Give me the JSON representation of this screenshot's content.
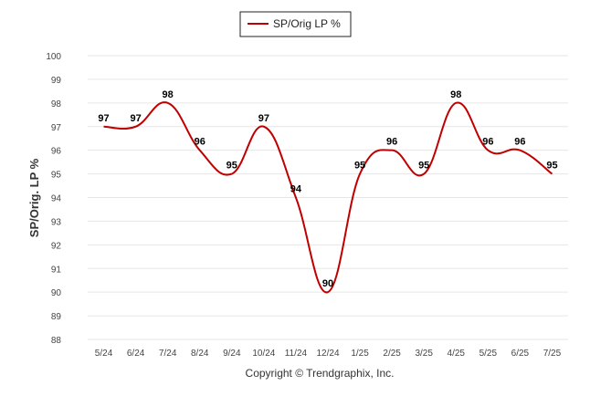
{
  "chart_data": {
    "type": "line",
    "title": "",
    "xlabel": "",
    "ylabel": "SP/Orig. LP %",
    "categories": [
      "5/24",
      "6/24",
      "7/24",
      "8/24",
      "9/24",
      "10/24",
      "11/24",
      "12/24",
      "1/25",
      "2/25",
      "3/25",
      "4/25",
      "5/25",
      "6/25",
      "7/25"
    ],
    "series": [
      {
        "name": "SP/Orig LP %",
        "values": [
          97,
          97,
          98,
          96,
          95,
          97,
          94,
          90,
          95,
          96,
          95,
          98,
          96,
          96,
          95
        ],
        "color": "#c00000"
      }
    ],
    "ylim": [
      88,
      100
    ],
    "yticks": [
      88,
      89,
      90,
      91,
      92,
      93,
      94,
      95,
      96,
      97,
      98,
      99,
      100
    ],
    "grid": true,
    "legend_position": "top-center",
    "data_labels": true
  },
  "footer": {
    "copyright": "Copyright © Trendgraphix, Inc."
  }
}
